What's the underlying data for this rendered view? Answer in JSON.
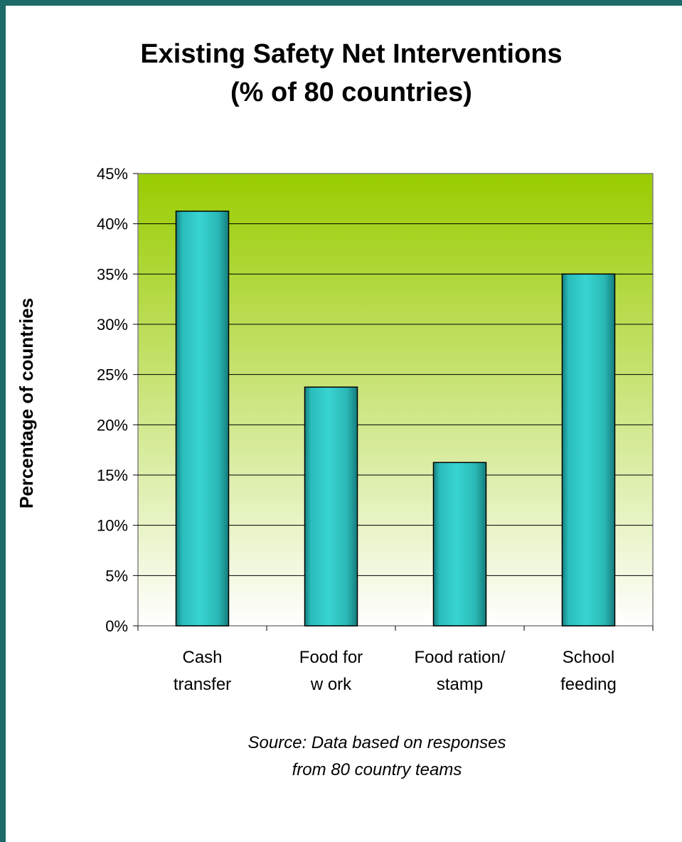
{
  "slide": {
    "background_color": "#1c6b68",
    "source_lines": [
      "Source: Data based on responses",
      "from 80 country teams"
    ]
  },
  "chart_data": {
    "type": "bar",
    "title_lines": [
      "Existing Safety Net Interventions",
      "(% of 80 countries)"
    ],
    "categories": [
      [
        "Cash",
        "transfer"
      ],
      [
        "Food for",
        "w ork"
      ],
      [
        "Food ration/",
        "stamp"
      ],
      [
        "School",
        "feeding"
      ]
    ],
    "values": [
      41.25,
      23.75,
      16.25,
      35.0
    ],
    "xlabel": "",
    "ylabel": "Percentage of countries",
    "ylim": [
      0,
      45
    ],
    "yticks": [
      0,
      5,
      10,
      15,
      20,
      25,
      30,
      35,
      40,
      45
    ],
    "ytick_format": "percent",
    "grid": true,
    "bar_color": "#33cccc",
    "plot_bg_top_color": "#99cc00",
    "plot_bg_bottom_color": "#ffffff"
  }
}
